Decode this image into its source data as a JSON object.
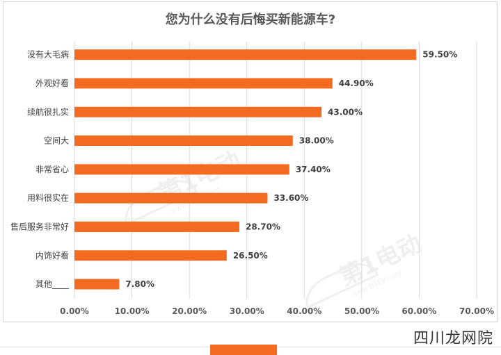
{
  "chart_data": {
    "type": "bar",
    "orientation": "horizontal",
    "title": "您为什么没有后悔买新能源车?",
    "categories": [
      "没有大毛病",
      "外观好看",
      "续航很扎实",
      "空间大",
      "非常省心",
      "用料很实在",
      "售后服务非常好",
      "内饰好看",
      "其他____"
    ],
    "values": [
      59.5,
      44.9,
      43.0,
      38.0,
      37.4,
      33.6,
      28.7,
      26.5,
      7.8
    ],
    "value_labels": [
      "59.50%",
      "44.90%",
      "43.00%",
      "38.00%",
      "37.40%",
      "33.60%",
      "28.70%",
      "26.50%",
      "7.80%"
    ],
    "xlim": [
      0,
      70
    ],
    "x_ticks": [
      "0.00%",
      "10.00%",
      "20.00%",
      "30.00%",
      "40.00%",
      "50.00%",
      "60.00%",
      "70.00%"
    ],
    "grid": true,
    "bar_color": "#f26b21",
    "grid_color": "#d9d9d9"
  },
  "watermark": {
    "brand": "第1电动",
    "domain": "www.D1EV.com"
  },
  "footer": {
    "site_text": "四川龙网院"
  }
}
